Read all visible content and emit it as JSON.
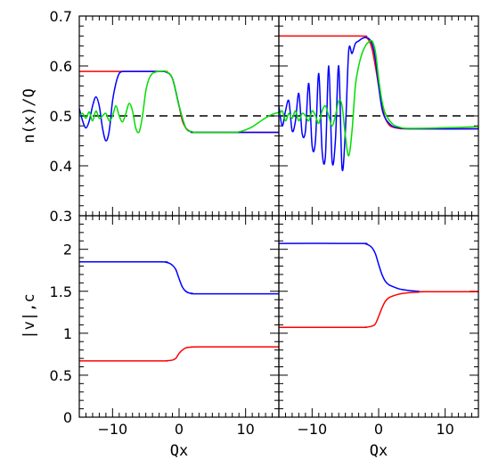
{
  "chart_data": [
    {
      "type": "line",
      "panel": "top-left",
      "xlabel": "",
      "ylabel": "n(x)/Q",
      "xlim": [
        -15,
        15
      ],
      "ylim": [
        0.3,
        0.7
      ],
      "y_ticks": [
        "0.3",
        "0.4",
        "0.5",
        "0.6",
        "0.7"
      ],
      "x_ticks": [],
      "reference_line": {
        "y": 0.5,
        "style": "dashed",
        "color": "#000000"
      },
      "series": [
        {
          "color": "#ff0000",
          "x": [
            -15,
            -3,
            -2,
            -1.5,
            -1,
            -0.5,
            0,
            0.5,
            1,
            1.5,
            2,
            3,
            15
          ],
          "y": [
            0.589,
            0.589,
            0.588,
            0.585,
            0.575,
            0.55,
            0.52,
            0.49,
            0.476,
            0.47,
            0.468,
            0.467,
            0.467
          ]
        },
        {
          "color": "#0000ff",
          "x": [
            -15,
            -14.5,
            -14,
            -13.5,
            -13,
            -12.5,
            -12,
            -11.5,
            -11,
            -10.5,
            -10,
            -9.5,
            -9,
            -8.5,
            -8,
            -7.5,
            -7,
            -6.5,
            -6,
            -5,
            -3,
            -2,
            -1,
            0,
            1,
            2,
            3,
            15
          ],
          "y": [
            0.515,
            0.49,
            0.476,
            0.49,
            0.52,
            0.538,
            0.52,
            0.475,
            0.45,
            0.47,
            0.53,
            0.565,
            0.585,
            0.589,
            0.589,
            0.589,
            0.589,
            0.589,
            0.589,
            0.589,
            0.589,
            0.588,
            0.575,
            0.52,
            0.476,
            0.468,
            0.467,
            0.467
          ]
        },
        {
          "color": "#00dd00",
          "x": [
            -15,
            -14.5,
            -14,
            -13.5,
            -13,
            -12.5,
            -12,
            -11.5,
            -11,
            -10.5,
            -10,
            -9.5,
            -9,
            -8.5,
            -8,
            -7.5,
            -7,
            -6.5,
            -6,
            -5.5,
            -5,
            -4.5,
            -4,
            -3.5,
            -3,
            -2.5,
            -2,
            -1,
            0,
            1,
            2,
            3,
            8,
            9,
            10,
            11,
            12,
            13,
            14,
            15
          ],
          "y": [
            0.5,
            0.505,
            0.495,
            0.508,
            0.49,
            0.51,
            0.495,
            0.5,
            0.505,
            0.49,
            0.5,
            0.52,
            0.5,
            0.488,
            0.505,
            0.525,
            0.51,
            0.475,
            0.468,
            0.5,
            0.55,
            0.575,
            0.585,
            0.588,
            0.589,
            0.589,
            0.589,
            0.575,
            0.52,
            0.476,
            0.468,
            0.467,
            0.467,
            0.468,
            0.472,
            0.478,
            0.487,
            0.496,
            0.503,
            0.507
          ]
        }
      ]
    },
    {
      "type": "line",
      "panel": "top-right",
      "xlabel": "",
      "ylabel": "",
      "xlim": [
        -15,
        15
      ],
      "ylim": [
        0.3,
        0.7
      ],
      "y_ticks": [],
      "x_ticks": [],
      "reference_line": {
        "y": 0.5,
        "style": "dashed",
        "color": "#000000"
      },
      "series": [
        {
          "color": "#ff0000",
          "x": [
            -15,
            -3,
            -2,
            -1.5,
            -1,
            -0.5,
            0,
            0.5,
            1,
            1.5,
            2,
            3,
            5,
            15
          ],
          "y": [
            0.66,
            0.66,
            0.658,
            0.652,
            0.635,
            0.6,
            0.56,
            0.52,
            0.495,
            0.483,
            0.478,
            0.475,
            0.474,
            0.474
          ]
        },
        {
          "color": "#0000ff",
          "x": [
            -15,
            -14.5,
            -14,
            -13.5,
            -13,
            -12.5,
            -12,
            -11.5,
            -11,
            -10.5,
            -10,
            -9.5,
            -9,
            -8.5,
            -8,
            -7.5,
            -7,
            -6.5,
            -6,
            -5.5,
            -5,
            -4.5,
            -4,
            -3.5,
            -3,
            -2.5,
            -2,
            -1.5,
            -1,
            -0.5,
            0,
            0.5,
            1,
            2,
            3,
            5,
            15
          ],
          "y": [
            0.52,
            0.48,
            0.51,
            0.53,
            0.47,
            0.49,
            0.545,
            0.465,
            0.47,
            0.565,
            0.44,
            0.45,
            0.585,
            0.43,
            0.42,
            0.6,
            0.41,
            0.45,
            0.6,
            0.395,
            0.47,
            0.63,
            0.625,
            0.645,
            0.65,
            0.655,
            0.657,
            0.655,
            0.645,
            0.615,
            0.56,
            0.515,
            0.495,
            0.48,
            0.476,
            0.474,
            0.474
          ]
        },
        {
          "color": "#00dd00",
          "x": [
            -15,
            -14.5,
            -14,
            -13.5,
            -13,
            -12.5,
            -12,
            -11.5,
            -11,
            -10.5,
            -10,
            -9.5,
            -9,
            -8.5,
            -8,
            -7.5,
            -7,
            -6.5,
            -6,
            -5.5,
            -5,
            -4.5,
            -4,
            -3.5,
            -3,
            -2.5,
            -2,
            -1.5,
            -1,
            -0.5,
            0,
            0.5,
            1,
            2,
            3,
            5,
            14,
            15
          ],
          "y": [
            0.5,
            0.51,
            0.49,
            0.505,
            0.495,
            0.51,
            0.49,
            0.505,
            0.5,
            0.49,
            0.51,
            0.5,
            0.485,
            0.51,
            0.52,
            0.5,
            0.48,
            0.5,
            0.53,
            0.52,
            0.46,
            0.42,
            0.47,
            0.56,
            0.6,
            0.625,
            0.64,
            0.648,
            0.65,
            0.63,
            0.575,
            0.53,
            0.505,
            0.485,
            0.478,
            0.475,
            0.478,
            0.48
          ]
        }
      ]
    },
    {
      "type": "line",
      "panel": "bottom-left",
      "xlabel": "Qx",
      "ylabel": "|v|,c",
      "xlim": [
        -15,
        15
      ],
      "ylim": [
        0,
        2.4
      ],
      "y_ticks": [
        "0",
        "0.5",
        "1",
        "1.5",
        "2"
      ],
      "x_ticks": [
        "−10",
        "0",
        "10"
      ],
      "series": [
        {
          "color": "#0000ff",
          "x": [
            -15,
            -3,
            -2,
            -1.5,
            -1,
            -0.5,
            0,
            0.5,
            1,
            1.5,
            2,
            3,
            15
          ],
          "y": [
            1.85,
            1.85,
            1.845,
            1.835,
            1.81,
            1.76,
            1.65,
            1.55,
            1.5,
            1.48,
            1.475,
            1.47,
            1.47
          ]
        },
        {
          "color": "#ff0000",
          "x": [
            -15,
            -3,
            -2,
            -1.5,
            -1,
            -0.5,
            0,
            0.5,
            1,
            1.5,
            2,
            3,
            15
          ],
          "y": [
            0.67,
            0.67,
            0.672,
            0.675,
            0.68,
            0.7,
            0.76,
            0.8,
            0.825,
            0.832,
            0.835,
            0.837,
            0.837
          ]
        }
      ]
    },
    {
      "type": "line",
      "panel": "bottom-right",
      "xlabel": "Qx",
      "ylabel": "",
      "xlim": [
        -15,
        15
      ],
      "ylim": [
        0,
        2.4
      ],
      "y_ticks": [],
      "x_ticks": [
        "−10",
        "0",
        "10"
      ],
      "series": [
        {
          "color": "#0000ff",
          "x": [
            -15,
            -3,
            -2,
            -1.5,
            -1,
            -0.5,
            0,
            0.5,
            1,
            1.5,
            2,
            3,
            4,
            5,
            6,
            7,
            15
          ],
          "y": [
            2.07,
            2.07,
            2.065,
            2.05,
            2.02,
            1.95,
            1.82,
            1.7,
            1.62,
            1.58,
            1.56,
            1.53,
            1.515,
            1.505,
            1.5,
            1.495,
            1.495
          ]
        },
        {
          "color": "#ff0000",
          "x": [
            -15,
            -3,
            -2,
            -1.5,
            -1,
            -0.5,
            0,
            0.5,
            1,
            1.5,
            2,
            3,
            4,
            5,
            6,
            7,
            15
          ],
          "y": [
            1.07,
            1.07,
            1.072,
            1.076,
            1.085,
            1.11,
            1.2,
            1.3,
            1.38,
            1.42,
            1.44,
            1.465,
            1.478,
            1.485,
            1.49,
            1.495,
            1.495
          ]
        }
      ]
    }
  ]
}
